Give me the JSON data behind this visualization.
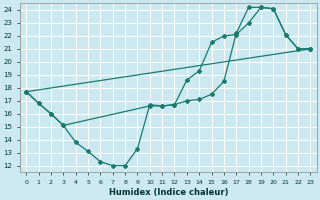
{
  "xlabel": "Humidex (Indice chaleur)",
  "xlim": [
    -0.5,
    23.5
  ],
  "ylim": [
    11.5,
    24.5
  ],
  "xticks": [
    0,
    1,
    2,
    3,
    4,
    5,
    6,
    7,
    8,
    9,
    10,
    11,
    12,
    13,
    14,
    15,
    16,
    17,
    18,
    19,
    20,
    21,
    22,
    23
  ],
  "yticks": [
    12,
    13,
    14,
    15,
    16,
    17,
    18,
    19,
    20,
    21,
    22,
    23,
    24
  ],
  "bg_color": "#cce8f0",
  "line_color": "#1a7a6e",
  "grid_color": "#ffffff",
  "line1_x": [
    0,
    1,
    2,
    3,
    4,
    5,
    6,
    7,
    8,
    9,
    10,
    11,
    12,
    13,
    14,
    15,
    16,
    17,
    18,
    19,
    20,
    21,
    22,
    23
  ],
  "line1_y": [
    17.7,
    16.8,
    16.0,
    15.1,
    13.8,
    13.1,
    12.3,
    12.0,
    12.0,
    13.3,
    16.7,
    16.6,
    16.7,
    18.6,
    19.3,
    21.5,
    22.0,
    22.1,
    23.0,
    24.2,
    24.1,
    22.1,
    21.0,
    21.0
  ],
  "line2_x": [
    0,
    1,
    2,
    3,
    10,
    11,
    12,
    13,
    14,
    15,
    16,
    17,
    18,
    19,
    20,
    21,
    22,
    23
  ],
  "line2_y": [
    17.7,
    16.8,
    16.0,
    15.1,
    16.6,
    16.6,
    16.7,
    17.0,
    17.1,
    17.5,
    18.5,
    22.2,
    24.2,
    24.2,
    24.1,
    22.1,
    21.0,
    21.0
  ],
  "line3_x": [
    0,
    23
  ],
  "line3_y": [
    17.7,
    21.0
  ]
}
